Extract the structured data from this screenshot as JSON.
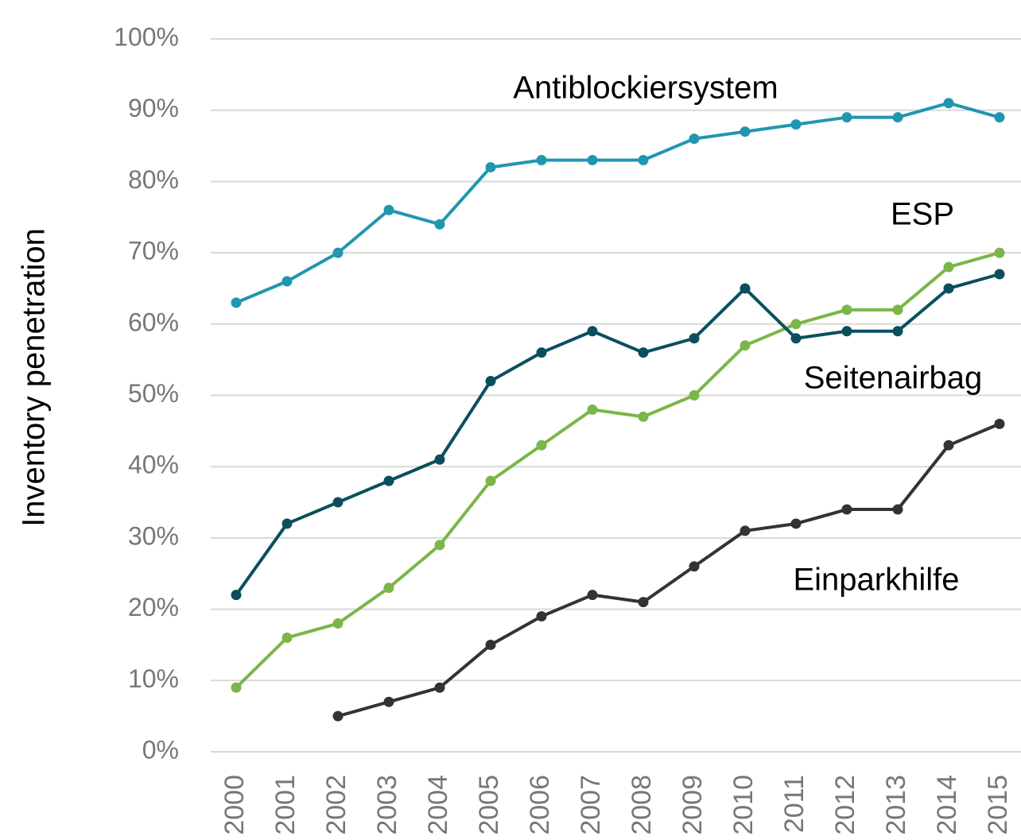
{
  "chart_data": {
    "type": "line",
    "y_label": "Inventory penetration",
    "categories": [
      "2000",
      "2001",
      "2002",
      "2003",
      "2004",
      "2005",
      "2006",
      "2007",
      "2008",
      "2009",
      "2010",
      "2011",
      "2012",
      "2013",
      "2014",
      "2015"
    ],
    "series": [
      {
        "name": "Antiblockiersystem",
        "color": "#2196b0",
        "values": [
          63,
          66,
          70,
          76,
          74,
          82,
          83,
          83,
          83,
          86,
          87,
          88,
          89,
          89,
          91,
          89
        ]
      },
      {
        "name": "ESP",
        "color": "#7ab648",
        "values": [
          9,
          16,
          18,
          23,
          29,
          38,
          43,
          48,
          47,
          50,
          57,
          60,
          62,
          62,
          68,
          70
        ]
      },
      {
        "name": "Seitenairbag",
        "color": "#0b4f5e",
        "values": [
          22,
          32,
          35,
          38,
          41,
          52,
          56,
          59,
          56,
          58,
          65,
          58,
          59,
          59,
          65,
          67
        ]
      },
      {
        "name": "Einparkhilfe",
        "color": "#333333",
        "values": [
          null,
          null,
          5,
          7,
          9,
          15,
          19,
          22,
          21,
          26,
          31,
          32,
          34,
          34,
          43,
          46
        ]
      }
    ],
    "ylim": [
      0,
      100
    ],
    "yticks": [
      {
        "value": 0,
        "label": "0%"
      },
      {
        "value": 10,
        "label": "10%"
      },
      {
        "value": 20,
        "label": "20%"
      },
      {
        "value": 30,
        "label": "30%"
      },
      {
        "value": 40,
        "label": "40%"
      },
      {
        "value": 50,
        "label": "50%"
      },
      {
        "value": 60,
        "label": "60%"
      },
      {
        "value": 70,
        "label": "70%"
      },
      {
        "value": 80,
        "label": "80%"
      },
      {
        "value": 90,
        "label": "90%"
      },
      {
        "value": 100,
        "label": "100%"
      }
    ],
    "grid": true
  }
}
